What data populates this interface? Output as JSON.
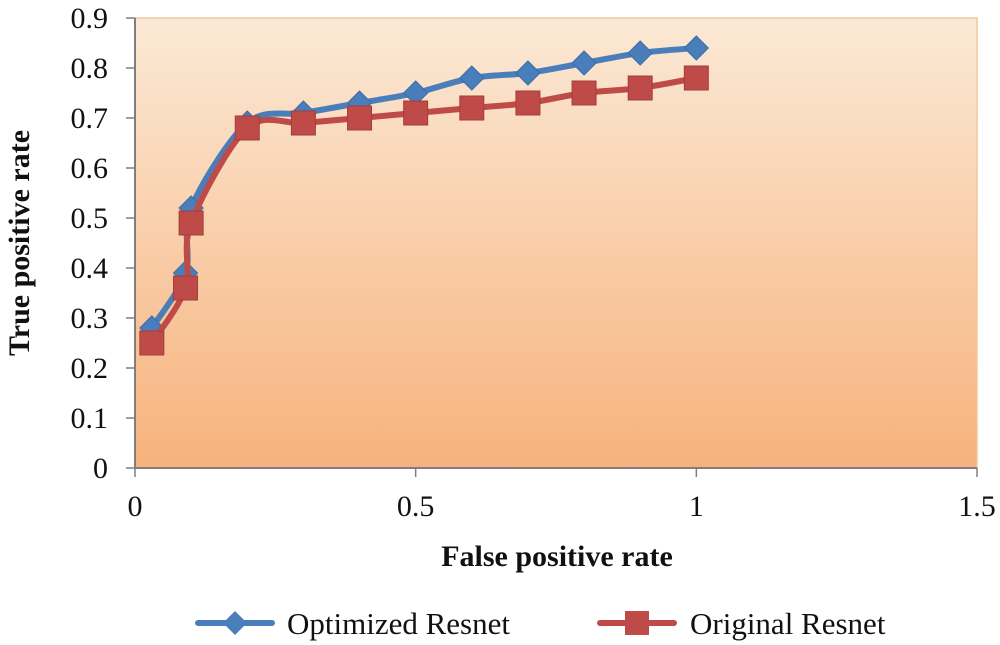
{
  "chart_data": {
    "type": "line",
    "title": "",
    "xlabel": "False positive rate",
    "ylabel": "True positive rate",
    "xlim": [
      0,
      1.5
    ],
    "ylim": [
      0,
      0.9
    ],
    "xticks": [
      0,
      0.5,
      1,
      1.5
    ],
    "xtick_labels": [
      "0",
      "0.5",
      "1",
      "1.5"
    ],
    "yticks": [
      0,
      0.1,
      0.2,
      0.3,
      0.4,
      0.5,
      0.6,
      0.7,
      0.8,
      0.9
    ],
    "ytick_labels": [
      "0",
      "0.1",
      "0.2",
      "0.3",
      "0.4",
      "0.5",
      "0.6",
      "0.7",
      "0.8",
      "0.9"
    ],
    "grid": false,
    "legend_position": "bottom",
    "plot_background": [
      "#FBE9D6",
      "#F7B27C"
    ],
    "series": [
      {
        "name": "Optimized Resnet",
        "color": "#4A7EBB",
        "marker": "diamond",
        "points": [
          [
            0.03,
            0.28
          ],
          [
            0.09,
            0.39
          ],
          [
            0.1,
            0.52
          ],
          [
            0.2,
            0.69
          ],
          [
            0.3,
            0.71
          ],
          [
            0.4,
            0.73
          ],
          [
            0.5,
            0.75
          ],
          [
            0.6,
            0.78
          ],
          [
            0.7,
            0.79
          ],
          [
            0.8,
            0.81
          ],
          [
            0.9,
            0.83
          ],
          [
            1.0,
            0.84
          ]
        ]
      },
      {
        "name": "Original Resnet",
        "color": "#BE4B48",
        "marker": "square",
        "points": [
          [
            0.03,
            0.25
          ],
          [
            0.09,
            0.36
          ],
          [
            0.1,
            0.49
          ],
          [
            0.2,
            0.68
          ],
          [
            0.3,
            0.69
          ],
          [
            0.4,
            0.7
          ],
          [
            0.5,
            0.71
          ],
          [
            0.6,
            0.72
          ],
          [
            0.7,
            0.73
          ],
          [
            0.8,
            0.75
          ],
          [
            0.9,
            0.76
          ],
          [
            1.0,
            0.78
          ]
        ]
      }
    ]
  }
}
